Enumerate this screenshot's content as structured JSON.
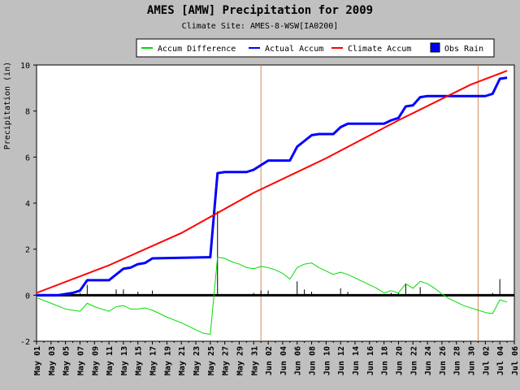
{
  "chart_data": {
    "type": "line",
    "title": "AMES [AMW] Precipitation for 2009",
    "subtitle": "Climate Site: AMES-8-WSW[IA0200]",
    "ylabel": "Precipitation (in)",
    "xlabel": "",
    "xlim": [
      "2009-05-01",
      "2009-07-06"
    ],
    "ylim": [
      -2,
      10
    ],
    "yticks": [
      -2,
      0,
      2,
      4,
      6,
      8,
      10
    ],
    "grid": false,
    "month_lines": [
      "2009-06-01",
      "2009-07-01"
    ],
    "xtick_labels": [
      "May 01",
      "May 03",
      "May 05",
      "May 07",
      "May 09",
      "May 11",
      "May 13",
      "May 15",
      "May 17",
      "May 19",
      "May 21",
      "May 23",
      "May 25",
      "May 27",
      "May 29",
      "May 31",
      "Jun 02",
      "Jun 04",
      "Jun 06",
      "Jun 08",
      "Jun 10",
      "Jun 12",
      "Jun 14",
      "Jun 16",
      "Jun 18",
      "Jun 20",
      "Jun 22",
      "Jun 24",
      "Jun 26",
      "Jun 28",
      "Jun 30",
      "Jul 02",
      "Jul 04",
      "Jul 06"
    ],
    "legend_position": "top-right",
    "series": [
      {
        "name": "Accum Difference",
        "color": "#00dd00",
        "kind": "line",
        "x": [
          "2009-05-01",
          "2009-05-03",
          "2009-05-05",
          "2009-05-07",
          "2009-05-08",
          "2009-05-09",
          "2009-05-11",
          "2009-05-12",
          "2009-05-13",
          "2009-05-14",
          "2009-05-15",
          "2009-05-16",
          "2009-05-17",
          "2009-05-19",
          "2009-05-21",
          "2009-05-23",
          "2009-05-24",
          "2009-05-25",
          "2009-05-26",
          "2009-05-27",
          "2009-05-28",
          "2009-05-29",
          "2009-05-30",
          "2009-05-31",
          "2009-06-01",
          "2009-06-02",
          "2009-06-03",
          "2009-06-04",
          "2009-06-05",
          "2009-06-06",
          "2009-06-07",
          "2009-06-08",
          "2009-06-09",
          "2009-06-10",
          "2009-06-11",
          "2009-06-12",
          "2009-06-13",
          "2009-06-14",
          "2009-06-15",
          "2009-06-16",
          "2009-06-17",
          "2009-06-18",
          "2009-06-19",
          "2009-06-20",
          "2009-06-21",
          "2009-06-22",
          "2009-06-23",
          "2009-06-24",
          "2009-06-25",
          "2009-06-26",
          "2009-06-27",
          "2009-06-28",
          "2009-06-29",
          "2009-06-30",
          "2009-07-01",
          "2009-07-02",
          "2009-07-03",
          "2009-07-04",
          "2009-07-05"
        ],
        "values": [
          -0.1,
          -0.35,
          -0.6,
          -0.7,
          -0.35,
          -0.5,
          -0.7,
          -0.5,
          -0.45,
          -0.6,
          -0.6,
          -0.55,
          -0.65,
          -0.95,
          -1.2,
          -1.5,
          -1.65,
          -1.7,
          1.65,
          1.6,
          1.45,
          1.35,
          1.2,
          1.15,
          1.25,
          1.2,
          1.1,
          0.95,
          0.7,
          1.2,
          1.35,
          1.4,
          1.2,
          1.05,
          0.9,
          1.0,
          0.9,
          0.75,
          0.6,
          0.45,
          0.3,
          0.1,
          0.2,
          0.1,
          0.5,
          0.3,
          0.6,
          0.5,
          0.3,
          0.05,
          -0.15,
          -0.3,
          -0.45,
          -0.55,
          -0.65,
          -0.75,
          -0.8,
          -0.2,
          -0.3
        ]
      },
      {
        "name": "Actual Accum",
        "color": "#0000ff",
        "kind": "line",
        "x": [
          "2009-05-01",
          "2009-05-04",
          "2009-05-05",
          "2009-05-06",
          "2009-05-07",
          "2009-05-08",
          "2009-05-11",
          "2009-05-12",
          "2009-05-13",
          "2009-05-14",
          "2009-05-15",
          "2009-05-16",
          "2009-05-17",
          "2009-05-25",
          "2009-05-26",
          "2009-05-27",
          "2009-05-30",
          "2009-05-31",
          "2009-06-01",
          "2009-06-02",
          "2009-06-05",
          "2009-06-06",
          "2009-06-07",
          "2009-06-08",
          "2009-06-09",
          "2009-06-10",
          "2009-06-11",
          "2009-06-12",
          "2009-06-13",
          "2009-06-18",
          "2009-06-19",
          "2009-06-20",
          "2009-06-21",
          "2009-06-22",
          "2009-06-23",
          "2009-06-24",
          "2009-07-02",
          "2009-07-03",
          "2009-07-04",
          "2009-07-05"
        ],
        "values": [
          0,
          0,
          0.05,
          0.1,
          0.2,
          0.65,
          0.65,
          0.9,
          1.15,
          1.2,
          1.35,
          1.4,
          1.6,
          1.65,
          5.3,
          5.35,
          5.35,
          5.45,
          5.65,
          5.85,
          5.85,
          6.45,
          6.7,
          6.95,
          7.0,
          7.0,
          7.0,
          7.3,
          7.45,
          7.45,
          7.6,
          7.7,
          8.2,
          8.25,
          8.6,
          8.65,
          8.65,
          8.75,
          9.4,
          9.45
        ]
      },
      {
        "name": "Climate Accum",
        "color": "#ff0000",
        "kind": "line",
        "x": [
          "2009-05-01",
          "2009-05-11",
          "2009-05-21",
          "2009-05-31",
          "2009-06-10",
          "2009-06-20",
          "2009-06-30",
          "2009-07-05"
        ],
        "values": [
          0.1,
          1.3,
          2.7,
          4.45,
          5.95,
          7.6,
          9.15,
          9.75
        ]
      },
      {
        "name": "Obs Rain",
        "color": "#000000",
        "legend_color": "#0000ff",
        "kind": "bar",
        "x": [
          "2009-05-05",
          "2009-05-06",
          "2009-05-07",
          "2009-05-08",
          "2009-05-12",
          "2009-05-13",
          "2009-05-15",
          "2009-05-17",
          "2009-05-26",
          "2009-05-31",
          "2009-06-01",
          "2009-06-02",
          "2009-06-06",
          "2009-06-07",
          "2009-06-08",
          "2009-06-12",
          "2009-06-13",
          "2009-06-19",
          "2009-06-20",
          "2009-06-21",
          "2009-06-23",
          "2009-07-03",
          "2009-07-04"
        ],
        "values": [
          0.05,
          0.05,
          0.1,
          0.45,
          0.25,
          0.25,
          0.15,
          0.2,
          3.65,
          0.1,
          0.2,
          0.2,
          0.6,
          0.25,
          0.15,
          0.3,
          0.15,
          0.1,
          0.1,
          0.5,
          0.35,
          0.1,
          0.7
        ]
      }
    ]
  }
}
